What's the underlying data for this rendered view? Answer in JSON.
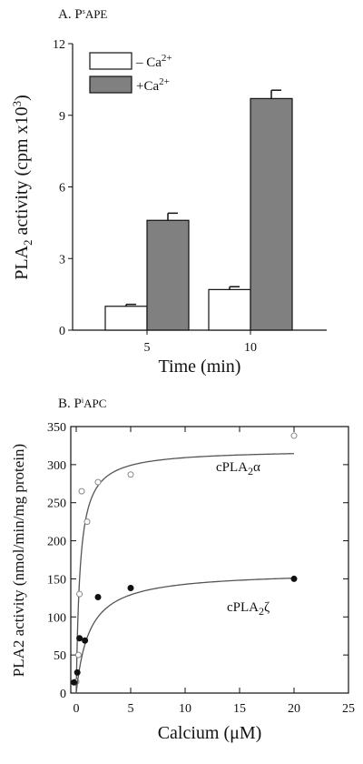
{
  "chart_data": [
    {
      "type": "bar",
      "panel_label": "A. P",
      "panel_label_sup": "s",
      "panel_label_rest": "APE",
      "categories": [
        "5",
        "10"
      ],
      "series": [
        {
          "name": "– Ca",
          "name_sup": "2+",
          "color": "#ffffff",
          "values": [
            1.0,
            1.7
          ],
          "errors": [
            0.08,
            0.12
          ]
        },
        {
          "name": "+Ca",
          "name_sup": "2+",
          "color": "#808080",
          "values": [
            4.6,
            9.7
          ],
          "errors": [
            0.3,
            0.35
          ]
        }
      ],
      "xlabel": "Time (min)",
      "ylabel_main": "PLA",
      "ylabel_sub": "2",
      "ylabel_mid": " activity (cpm x10",
      "ylabel_sup": "3",
      "ylabel_end": ")",
      "ylim": [
        0,
        12
      ],
      "yticks": [
        0,
        3,
        6,
        9,
        12
      ],
      "legend_position": "top-left"
    },
    {
      "type": "scatter",
      "panel_label": "B. P",
      "panel_label_sup": "i",
      "panel_label_rest": "APC",
      "series": [
        {
          "name": "cPLA",
          "name_sub": "2",
          "name_greek": "α",
          "marker": "open-circle",
          "points": [
            [
              0,
              15
            ],
            [
              0.2,
              50
            ],
            [
              0.3,
              130
            ],
            [
              0.5,
              265
            ],
            [
              1,
              225
            ],
            [
              2,
              277
            ],
            [
              5,
              287
            ],
            [
              20,
              338
            ]
          ],
          "fit": {
            "vmax": 320,
            "km": 0.35
          }
        },
        {
          "name": "cPLA",
          "name_sub": "2",
          "name_greek": "ζ",
          "marker": "filled-circle",
          "points": [
            [
              -0.2,
              14
            ],
            [
              0.1,
              27
            ],
            [
              0.3,
              72
            ],
            [
              0.8,
              69
            ],
            [
              2,
              126
            ],
            [
              5,
              138
            ],
            [
              20,
              150
            ]
          ],
          "fit": {
            "vmax": 160,
            "km": 1.2
          }
        }
      ],
      "xlabel": "Calcium (μM)",
      "ylabel": "PLA2 activity (nmol/min/mg protein)",
      "xlim": [
        -0.5,
        25
      ],
      "ylim": [
        0,
        350
      ],
      "xticks": [
        0,
        5,
        10,
        15,
        20,
        25
      ],
      "yticks": [
        0,
        50,
        100,
        150,
        200,
        250,
        300,
        350
      ]
    }
  ]
}
